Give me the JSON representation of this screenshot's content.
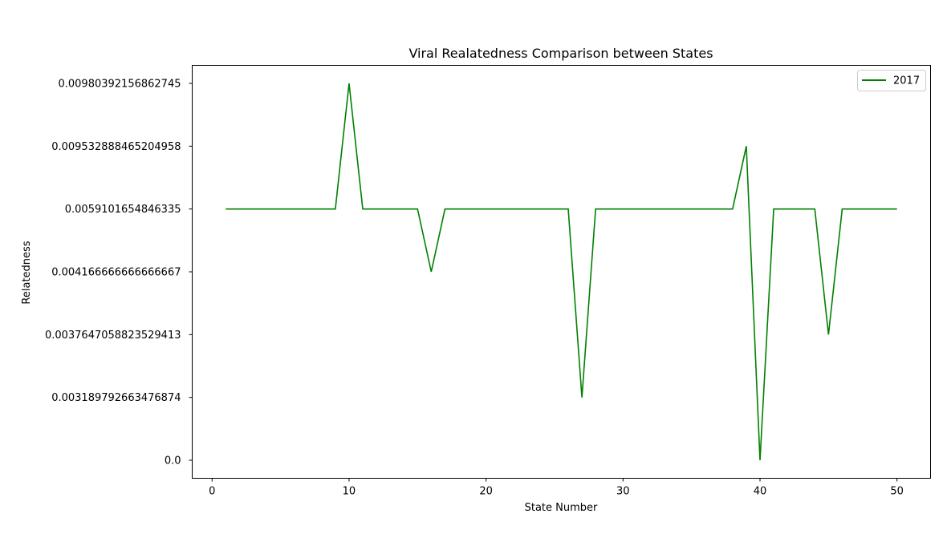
{
  "chart_data": {
    "type": "line",
    "title": "Viral Realatedness Comparison between States",
    "xlabel": "State Number",
    "ylabel": "Relatedness",
    "xlim": [
      -1.45,
      52.45
    ],
    "x_ticks": [
      "0",
      "10",
      "20",
      "30",
      "40",
      "50"
    ],
    "y_ticks": [
      "0.0",
      "0.003189792663476874",
      "0.0037647058823529413",
      "0.004166666666666667",
      "0.0059101654846335",
      "0.009532888465204958",
      "0.00980392156862745"
    ],
    "y_scale": "categorical (evenly spaced tick labels)",
    "grid": false,
    "legend_position": "top-right",
    "series": [
      {
        "name": "2017",
        "color": "#008000",
        "x": [
          1,
          2,
          3,
          4,
          5,
          6,
          7,
          8,
          9,
          10,
          11,
          12,
          13,
          14,
          15,
          16,
          17,
          18,
          19,
          20,
          21,
          22,
          23,
          24,
          25,
          26,
          27,
          28,
          29,
          30,
          31,
          32,
          33,
          34,
          35,
          36,
          37,
          38,
          39,
          40,
          41,
          42,
          43,
          44,
          45,
          46,
          47,
          48,
          49,
          50
        ],
        "y": [
          "0.0059101654846335",
          "0.0059101654846335",
          "0.0059101654846335",
          "0.0059101654846335",
          "0.0059101654846335",
          "0.0059101654846335",
          "0.0059101654846335",
          "0.0059101654846335",
          "0.0059101654846335",
          "0.00980392156862745",
          "0.0059101654846335",
          "0.0059101654846335",
          "0.0059101654846335",
          "0.0059101654846335",
          "0.0059101654846335",
          "0.004166666666666667",
          "0.0059101654846335",
          "0.0059101654846335",
          "0.0059101654846335",
          "0.0059101654846335",
          "0.0059101654846335",
          "0.0059101654846335",
          "0.0059101654846335",
          "0.0059101654846335",
          "0.0059101654846335",
          "0.0059101654846335",
          "0.003189792663476874",
          "0.0059101654846335",
          "0.0059101654846335",
          "0.0059101654846335",
          "0.0059101654846335",
          "0.0059101654846335",
          "0.0059101654846335",
          "0.0059101654846335",
          "0.0059101654846335",
          "0.0059101654846335",
          "0.0059101654846335",
          "0.0059101654846335",
          "0.009532888465204958",
          "0.0",
          "0.0059101654846335",
          "0.0059101654846335",
          "0.0059101654846335",
          "0.0059101654846335",
          "0.0037647058823529413",
          "0.0059101654846335",
          "0.0059101654846335",
          "0.0059101654846335",
          "0.0059101654846335",
          "0.0059101654846335"
        ]
      }
    ]
  }
}
